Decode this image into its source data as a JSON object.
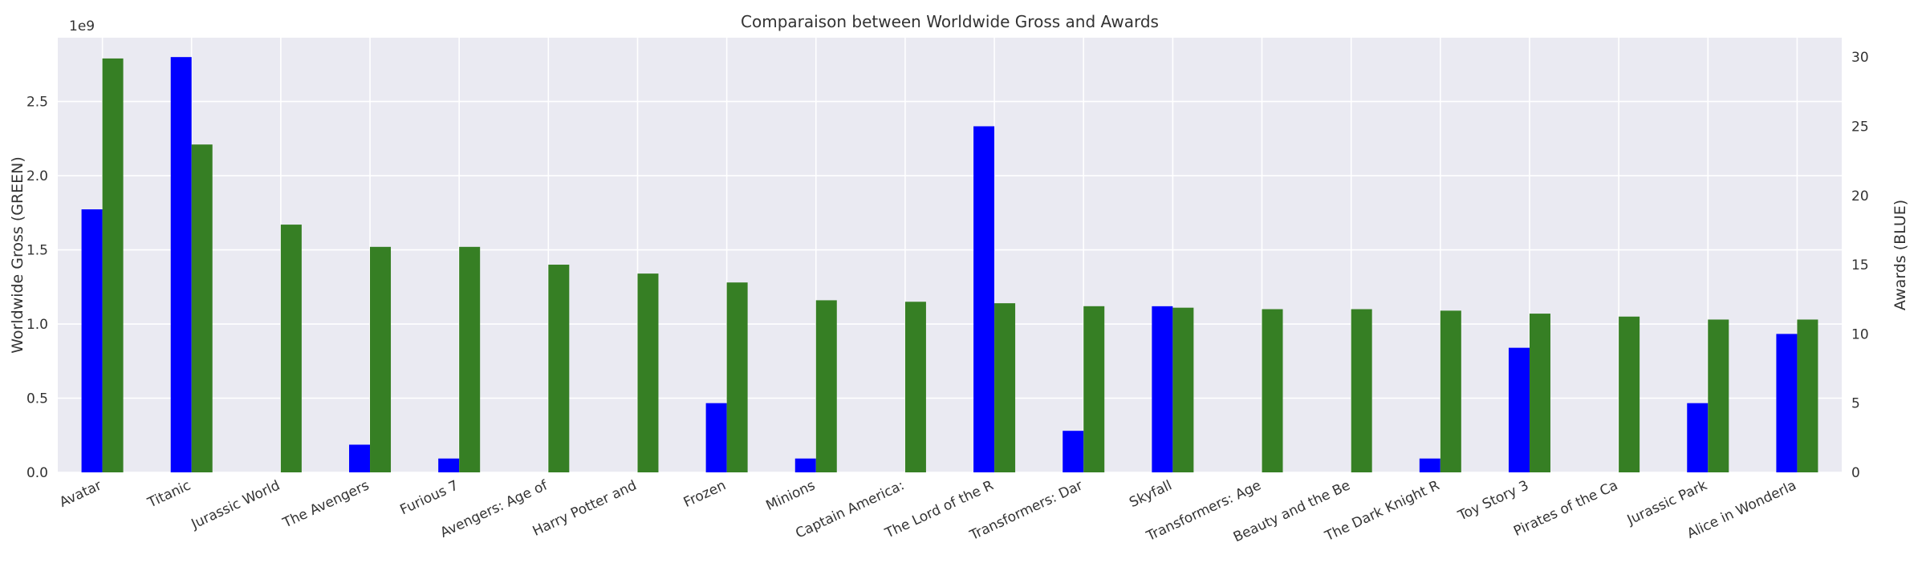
{
  "chart_data": {
    "type": "bar",
    "title": "Comparaison between Worldwide Gross and Awards",
    "categories": [
      "Avatar",
      "Titanic",
      "Jurassic World",
      "The Avengers",
      "Furious 7",
      "Avengers: Age of",
      "Harry Potter and",
      "Frozen",
      "Minions",
      "Captain America:",
      "The Lord of the R",
      "Transformers: Dar",
      "Skyfall",
      "Transformers: Age",
      "Beauty and the Be",
      "The Dark Knight R",
      "Toy Story 3",
      "Pirates of the Ca",
      "Jurassic Park",
      "Alice in Wonderla"
    ],
    "y_left": {
      "label": "Worldwide Gross (GREEN)",
      "exponent_label": "1e9",
      "ylim": [
        0,
        2.93
      ],
      "ticks": [
        0.0,
        0.5,
        1.0,
        1.5,
        2.0,
        2.5
      ],
      "tick_labels": [
        "0.0",
        "0.5",
        "1.0",
        "1.5",
        "2.0",
        "2.5"
      ]
    },
    "y_right": {
      "label": "Awards (BLUE)",
      "ylim": [
        0,
        31.4
      ],
      "ticks": [
        0,
        5,
        10,
        15,
        20,
        25,
        30
      ],
      "tick_labels": [
        "0",
        "5",
        "10",
        "15",
        "20",
        "25",
        "30"
      ]
    },
    "series": [
      {
        "axis": "right",
        "color": "#0000ff",
        "values": [
          19,
          30,
          0,
          2,
          1,
          0,
          0,
          5,
          1,
          0,
          25,
          3,
          12,
          0,
          0,
          1,
          9,
          0,
          5,
          10
        ]
      },
      {
        "axis": "left",
        "color": "#367f24",
        "values": [
          2.79,
          2.21,
          1.67,
          1.52,
          1.52,
          1.4,
          1.34,
          1.28,
          1.16,
          1.15,
          1.14,
          1.12,
          1.11,
          1.1,
          1.1,
          1.09,
          1.07,
          1.05,
          1.03,
          1.03
        ]
      }
    ],
    "grid": true,
    "background_color": "#eaeaf2"
  }
}
